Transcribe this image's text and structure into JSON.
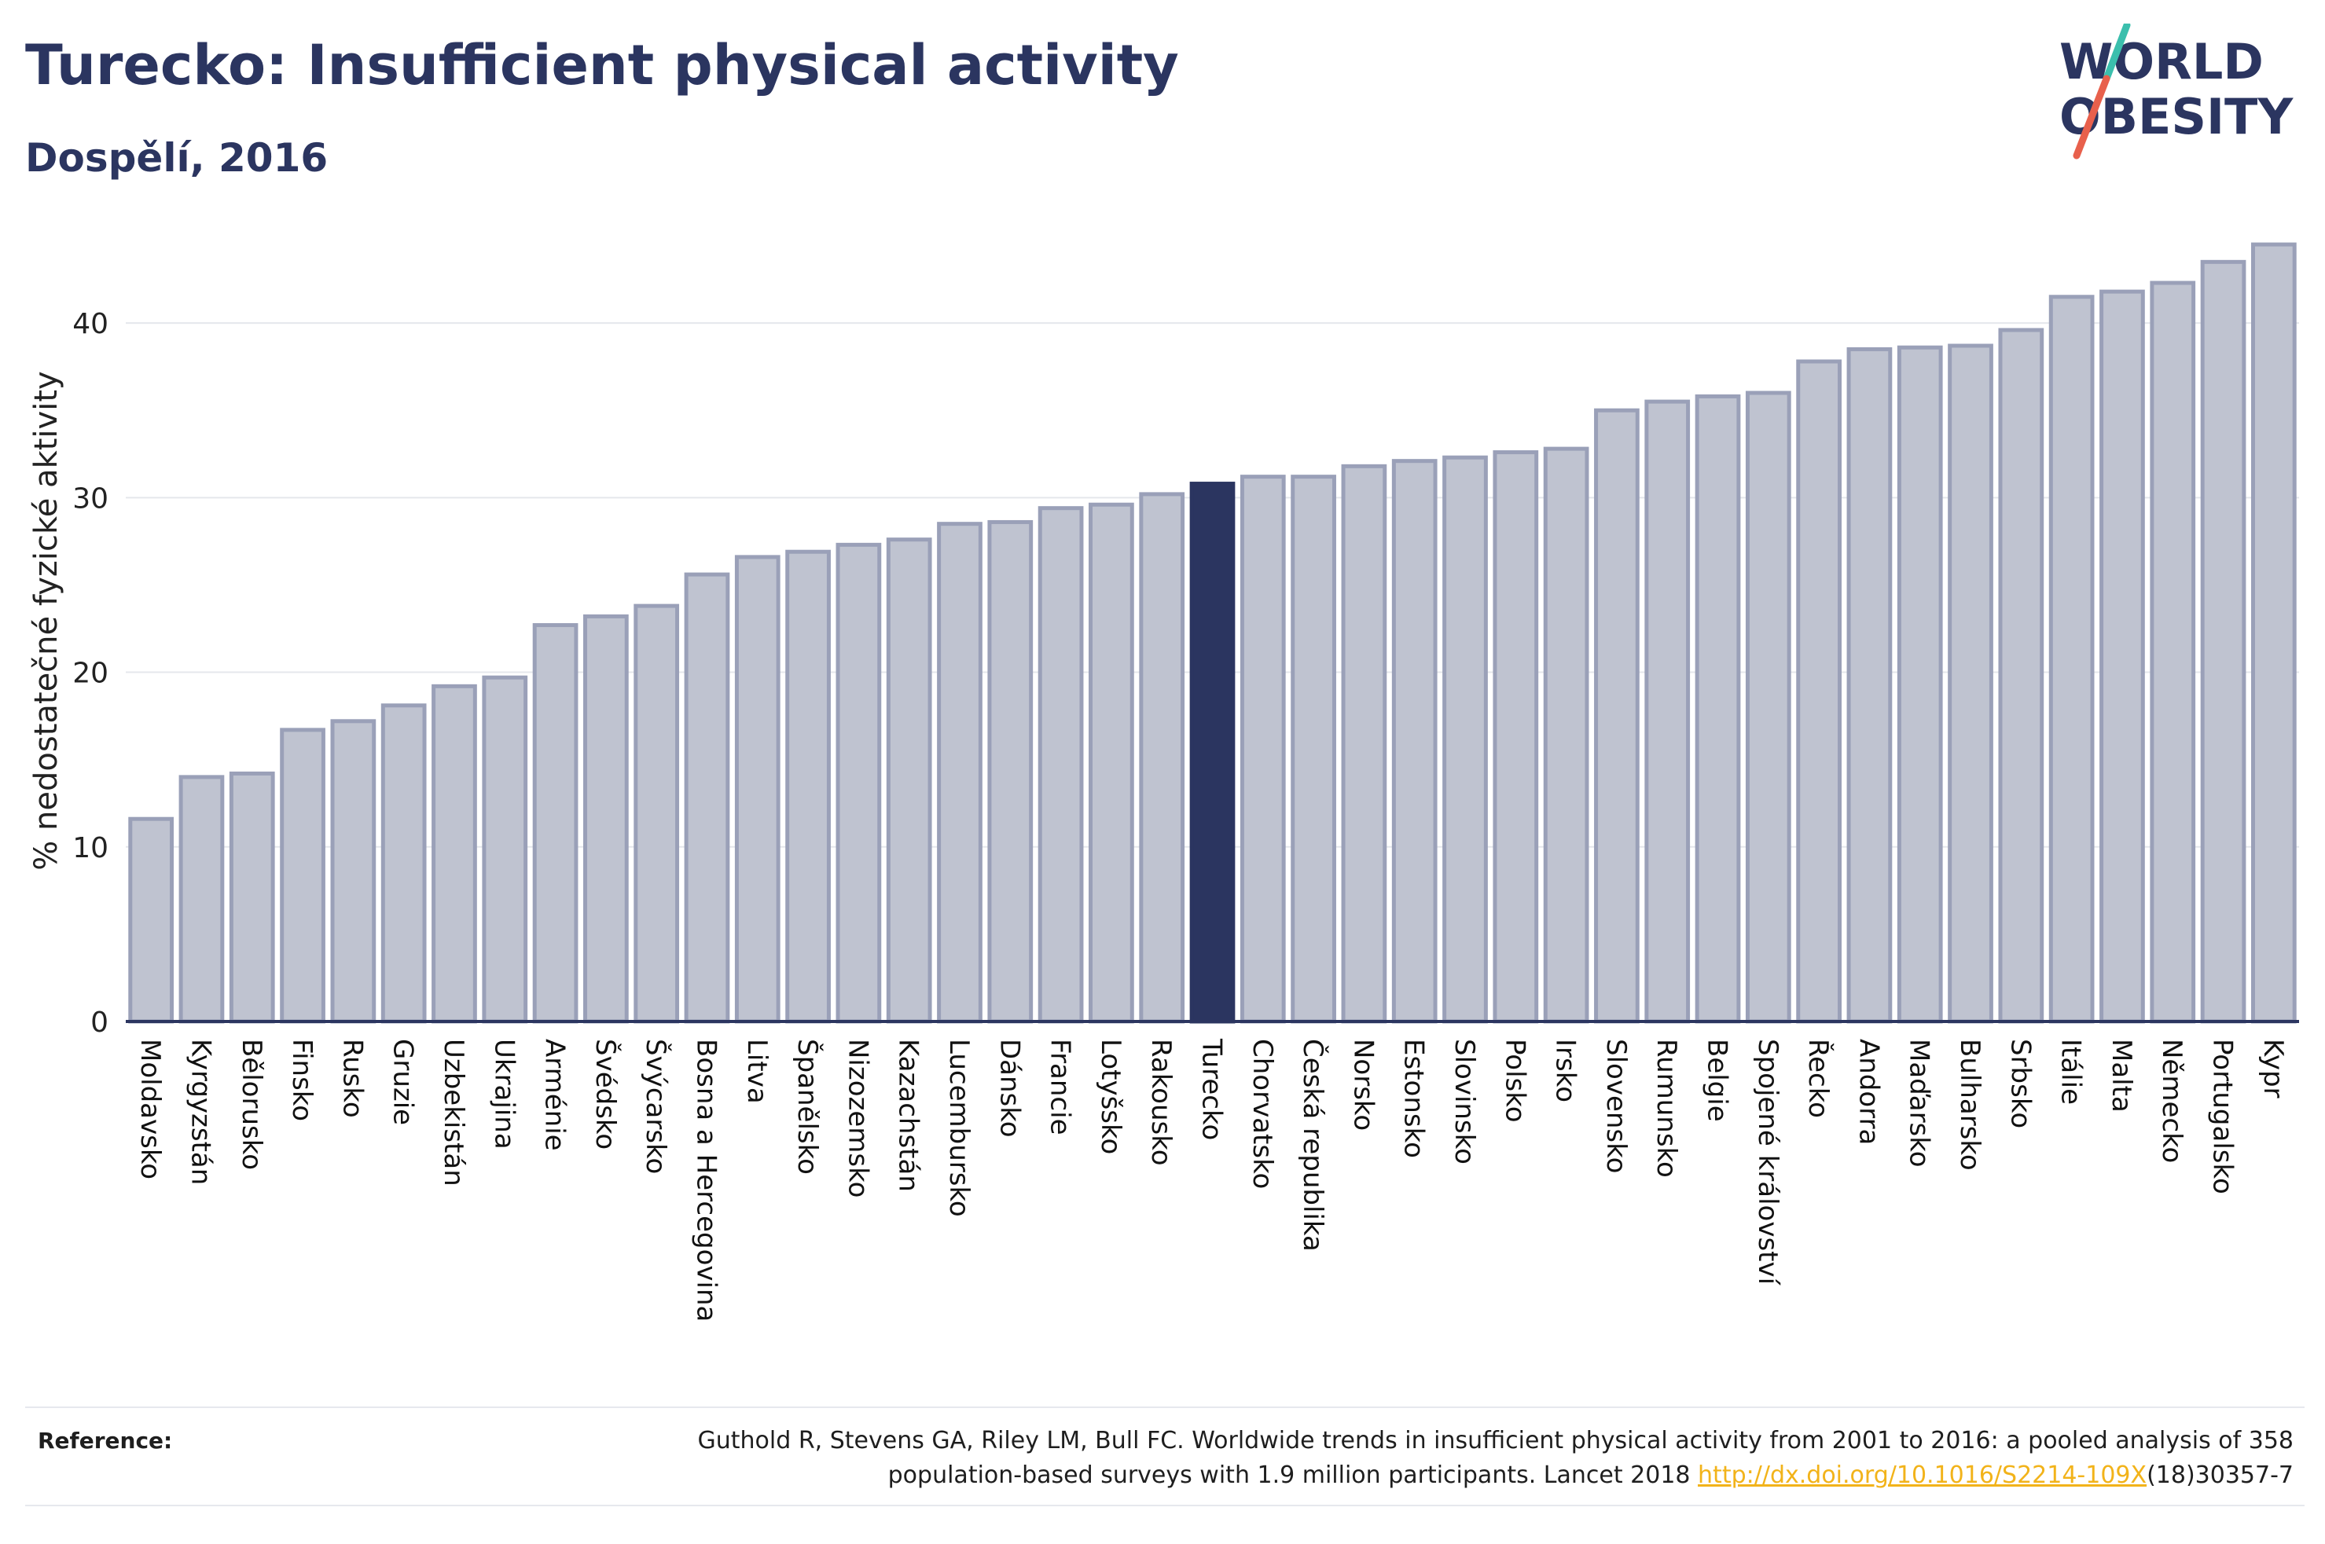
{
  "header": {
    "title": "Turecko: Insufficient physical activity",
    "subtitle": "Dospělí, 2016"
  },
  "logo": {
    "line1": "WORLD",
    "line2": "OBESITY",
    "text_color": "#2b3560",
    "slash_colors": [
      "#3bbfad",
      "#e8604c"
    ]
  },
  "chart_data": {
    "type": "bar",
    "title": "Turecko: Insufficient physical activity",
    "subtitle": "Dospělí, 2016",
    "xlabel": "",
    "ylabel": "% nedostatečné fyzické aktivity",
    "ylim": [
      0,
      45
    ],
    "yticks": [
      0,
      10,
      20,
      30,
      40
    ],
    "grid": true,
    "highlight": "Turecko",
    "colors": {
      "bar": "#bfc3d0",
      "bar_edge": "#9aa0b8",
      "highlight": "#2b3560",
      "grid": "#e5e7ec",
      "axis": "#2b3560"
    },
    "categories": [
      "Moldavsko",
      "Kyrgyzstán",
      "Bělorusko",
      "Finsko",
      "Rusko",
      "Gruzie",
      "Uzbekistán",
      "Ukrajina",
      "Arménie",
      "Švédsko",
      "Švýcarsko",
      "Bosna a Hercegovina",
      "Litva",
      "Španělsko",
      "Nizozemsko",
      "Kazachstán",
      "Lucembursko",
      "Dánsko",
      "Francie",
      "Lotyšsko",
      "Rakousko",
      "Turecko",
      "Chorvatsko",
      "Česká republika",
      "Norsko",
      "Estonsko",
      "Slovinsko",
      "Polsko",
      "Irsko",
      "Slovensko",
      "Rumunsko",
      "Belgie",
      "Spojené království",
      "Řecko",
      "Andorra",
      "Maďarsko",
      "Bulharsko",
      "Srbsko",
      "Itálie",
      "Malta",
      "Německo",
      "Portugalsko",
      "Kypr"
    ],
    "values": [
      11.6,
      14.0,
      14.2,
      16.7,
      17.2,
      18.1,
      19.2,
      19.7,
      22.7,
      23.2,
      23.8,
      25.6,
      26.6,
      26.9,
      27.3,
      27.6,
      28.5,
      28.6,
      29.4,
      29.6,
      30.2,
      30.8,
      31.2,
      31.2,
      31.8,
      32.1,
      32.3,
      32.6,
      32.8,
      35.0,
      35.5,
      35.8,
      36.0,
      37.8,
      38.5,
      38.6,
      38.7,
      39.6,
      41.5,
      41.8,
      42.3,
      43.5,
      44.5
    ]
  },
  "reference": {
    "label": "Reference:",
    "line1": "Guthold R, Stevens GA, Riley LM, Bull FC. Worldwide trends in insufficient physical activity from 2001 to 2016: a pooled analysis of 358",
    "line2_before": "population-based surveys with 1.9 million participants. Lancet 2018 ",
    "link": "http://dx.doi.org/10.1016/S2214-109X",
    "line2_after": "(18)30357-7"
  }
}
